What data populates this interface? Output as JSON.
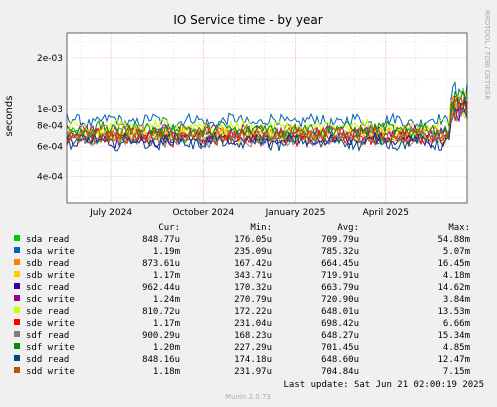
{
  "chart_data": {
    "type": "line",
    "title": "IO Service time - by year",
    "ylabel": "seconds",
    "y_scale": "log",
    "ylim": [
      0.00028,
      0.0028
    ],
    "y_ticks": [
      {
        "value": 0.0004,
        "label": "4e-04"
      },
      {
        "value": 0.0006,
        "label": "6e-04"
      },
      {
        "value": 0.0008,
        "label": "8e-04"
      },
      {
        "value": 0.001,
        "label": "1e-03"
      },
      {
        "value": 0.002,
        "label": "2e-03"
      }
    ],
    "x_range": [
      "2024-05-18",
      "2025-06-21"
    ],
    "x_ticks": [
      {
        "date": "2024-07-01",
        "label": "July 2024"
      },
      {
        "date": "2024-10-01",
        "label": "October 2024"
      },
      {
        "date": "2025-01-01",
        "label": "January 2025"
      },
      {
        "date": "2025-04-01",
        "label": "April 2025"
      }
    ],
    "grid": true,
    "legend_headers": {
      "cur": "Cur:",
      "min": "Min:",
      "avg": "Avg:",
      "max": "Max:"
    },
    "series": [
      {
        "name": "sda read",
        "color": "#00cc00",
        "cur": "848.77u",
        "min": "176.05u",
        "avg": "709.79u",
        "max": "54.88m",
        "base": 0.0007
      },
      {
        "name": "sda write",
        "color": "#0066b3",
        "cur": "1.19m",
        "min": "235.09u",
        "avg": "785.32u",
        "max": "5.07m",
        "base": 0.00085
      },
      {
        "name": "sdb read",
        "color": "#ff8000",
        "cur": "873.61u",
        "min": "167.42u",
        "avg": "664.45u",
        "max": "16.45m",
        "base": 0.00072
      },
      {
        "name": "sdb write",
        "color": "#ffcc00",
        "cur": "1.17m",
        "min": "343.71u",
        "avg": "719.91u",
        "max": "4.18m",
        "base": 0.0007
      },
      {
        "name": "sdc read",
        "color": "#330099",
        "cur": "962.44u",
        "min": "170.32u",
        "avg": "663.79u",
        "max": "14.62m",
        "base": 0.00066
      },
      {
        "name": "sdc write",
        "color": "#990099",
        "cur": "1.24m",
        "min": "270.79u",
        "avg": "720.90u",
        "max": "3.84m",
        "base": 0.00074
      },
      {
        "name": "sde read",
        "color": "#ccff00",
        "cur": "810.72u",
        "min": "172.22u",
        "avg": "648.01u",
        "max": "13.53m",
        "base": 0.00078
      },
      {
        "name": "sde write",
        "color": "#ff0000",
        "cur": "1.17m",
        "min": "231.04u",
        "avg": "698.42u",
        "max": "6.66m",
        "base": 0.00068
      },
      {
        "name": "sdf read",
        "color": "#808080",
        "cur": "900.29u",
        "min": "168.23u",
        "avg": "648.27u",
        "max": "15.34m",
        "base": 0.00067
      },
      {
        "name": "sdf write",
        "color": "#008f00",
        "cur": "1.20m",
        "min": "227.29u",
        "avg": "701.45u",
        "max": "4.85m",
        "base": 0.00076
      },
      {
        "name": "sdd read",
        "color": "#00487d",
        "cur": "848.16u",
        "min": "174.18u",
        "avg": "648.60u",
        "max": "12.47m",
        "base": 0.00064
      },
      {
        "name": "sdd write",
        "color": "#b35a00",
        "cur": "1.18m",
        "min": "231.97u",
        "avg": "704.84u",
        "max": "7.15m",
        "base": 0.00071
      }
    ],
    "last_update": "Last update: Sat Jun 21 02:00:19 2025",
    "side_text": "RRDTOOL / TOBI OETIKER",
    "footer": "Munin 2.0.73"
  }
}
